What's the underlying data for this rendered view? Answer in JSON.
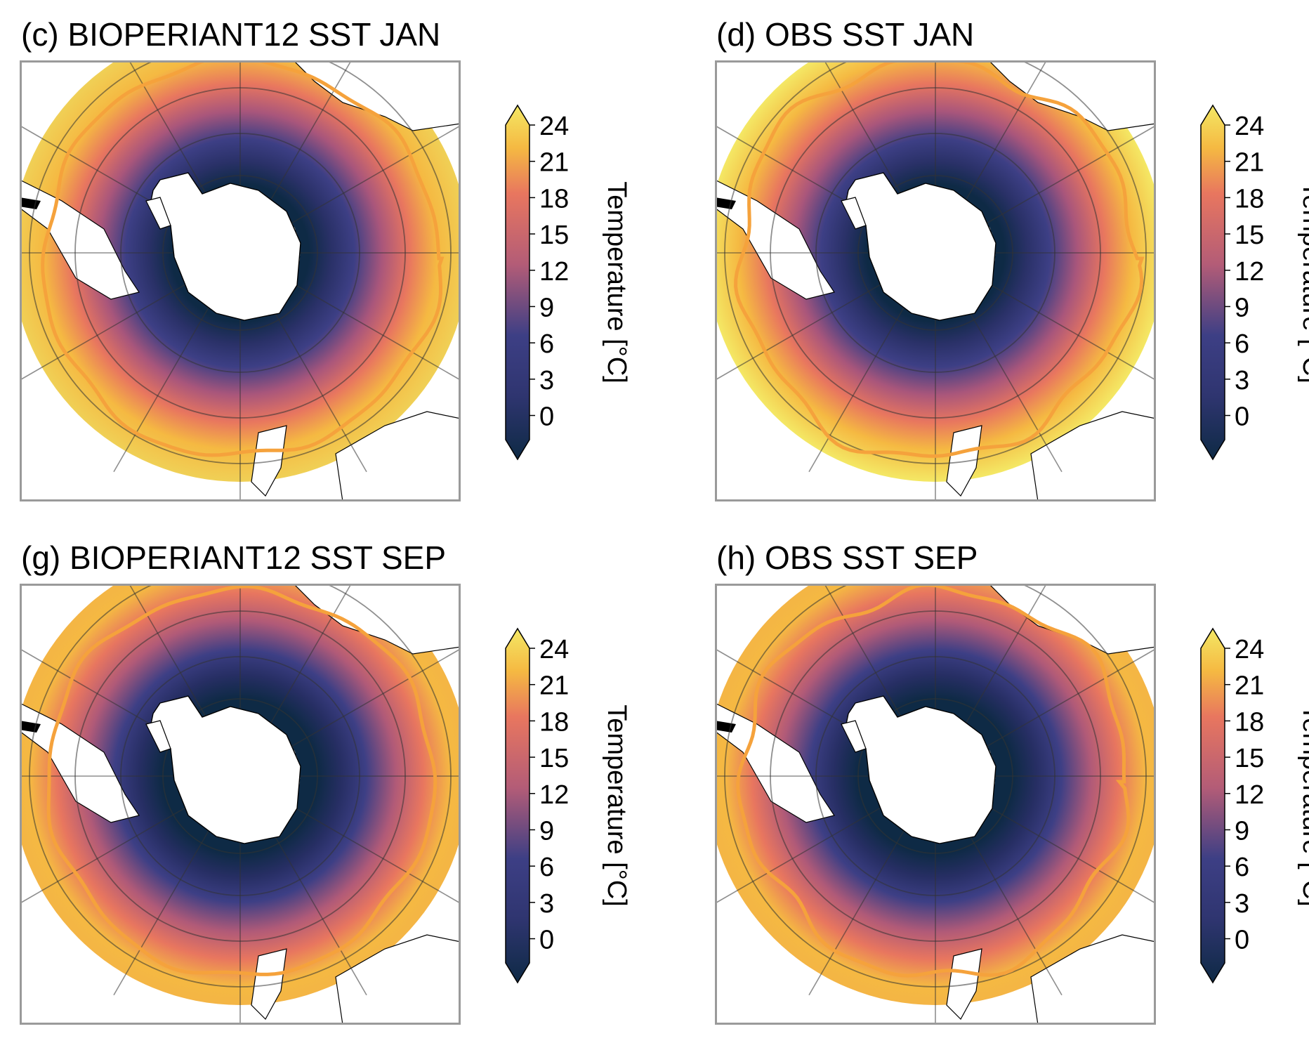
{
  "colorbar": {
    "label": "Temperature [°C]",
    "ticks": [
      "24",
      "21",
      "18",
      "15",
      "12",
      "9",
      "6",
      "3",
      "0"
    ],
    "range": [
      -2,
      24
    ]
  },
  "colors": {
    "ice": "#0e2a45",
    "cold": "#3d3f85",
    "mid": "#e8765f",
    "warm": "#f5b942",
    "hot": "#f4e865",
    "contour_blue": "#1a86e6",
    "contour_pink": "#f06eb7",
    "contour_orange": "#f5a23c",
    "land": "#ffffff",
    "frame": "#9a9a9a"
  },
  "chart_data": [
    {
      "type": "heatmap",
      "panel": "c",
      "title": "(c) BIOPERIANT12 SST JAN",
      "variable": "SST",
      "month": "JAN",
      "source": "BIOPERIANT12",
      "projection": "south-polar-stereographic",
      "colormap_range": [
        -2,
        24
      ],
      "contour_lines": [
        "blue",
        "pink",
        "orange"
      ]
    },
    {
      "type": "heatmap",
      "panel": "d",
      "title": "(d) OBS SST JAN",
      "variable": "SST",
      "month": "JAN",
      "source": "OBS",
      "projection": "south-polar-stereographic",
      "colormap_range": [
        -2,
        24
      ],
      "contour_lines": [
        "blue",
        "pink",
        "orange"
      ]
    },
    {
      "type": "heatmap",
      "panel": "g",
      "title": "(g) BIOPERIANT12 SST SEP",
      "variable": "SST",
      "month": "SEP",
      "source": "BIOPERIANT12",
      "projection": "south-polar-stereographic",
      "colormap_range": [
        -2,
        24
      ],
      "contour_lines": [
        "blue",
        "pink",
        "orange"
      ]
    },
    {
      "type": "heatmap",
      "panel": "h",
      "title": "(h) OBS SST SEP",
      "variable": "SST",
      "month": "SEP",
      "source": "OBS",
      "projection": "south-polar-stereographic",
      "colormap_range": [
        -2,
        24
      ],
      "contour_lines": [
        "blue",
        "pink",
        "orange"
      ]
    }
  ]
}
